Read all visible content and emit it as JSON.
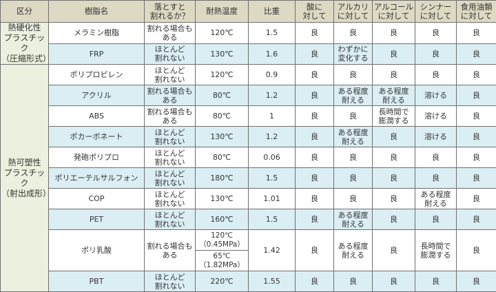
{
  "headers": [
    "区分",
    "樹脂名",
    "落とすと\n割れるか？",
    "耐熱温度",
    "比重",
    "酸に\n対して",
    "アルカリ\nに対して",
    "アルコール\nに対して",
    "シンナー\nに対して",
    "食用油類\nに対して"
  ],
  "categories": [
    {
      "label": "熱硬化性\nプラスチック\n（圧縮形式）",
      "rows": 2
    },
    {
      "label": "熱可塑性\nプラスチック\n（射出成形）",
      "rows": 10
    }
  ],
  "rows": [
    {
      "name": "メラミン樹脂",
      "drop": "割れる場合も\nある",
      "heat": [
        "120℃"
      ],
      "gravity": "1.5",
      "acid": "良",
      "alkali": "良",
      "alcohol": "良",
      "thinner": "良",
      "oil": "良",
      "shade": "w"
    },
    {
      "name": "FRP",
      "drop": "ほとんど\n割れない",
      "heat": [
        "130℃"
      ],
      "gravity": "1.6",
      "acid": "良",
      "alkali": "わずかに\n変化する",
      "alcohol": "良",
      "thinner": "良",
      "oil": "良",
      "shade": "b"
    },
    {
      "name": "ポリプロピレン",
      "drop": "ほとんど\n割れない",
      "heat": [
        "120℃"
      ],
      "gravity": "0.9",
      "acid": "良",
      "alkali": "良",
      "alcohol": "良",
      "thinner": "良",
      "oil": "良",
      "shade": "w"
    },
    {
      "name": "アクリル",
      "drop": "割れる場合も\nある",
      "heat": [
        "80℃"
      ],
      "gravity": "1.2",
      "acid": "良",
      "alkali": "ある程度\n耐える",
      "alcohol": "ある程度\n耐える",
      "thinner": "溶ける",
      "oil": "良",
      "shade": "b"
    },
    {
      "name": "ABS",
      "drop": "割れる場合も\nある",
      "heat": [
        "80℃"
      ],
      "gravity": "1",
      "acid": "良",
      "alkali": "良",
      "alcohol": "長時間で\n膨潤する",
      "thinner": "溶ける",
      "oil": "良",
      "shade": "w"
    },
    {
      "name": "ポカーボネート",
      "drop": "ほとんど\n割れない",
      "heat": [
        "130℃"
      ],
      "gravity": "1.2",
      "acid": "良",
      "alkali": "ある程度\n耐える",
      "alcohol": "良",
      "thinner": "溶ける",
      "oil": "良",
      "shade": "b"
    },
    {
      "name": "発砲ポリプロ",
      "drop": "ほとんど\n割れない",
      "heat": [
        "80℃"
      ],
      "gravity": "0.06",
      "acid": "良",
      "alkali": "良",
      "alcohol": "良",
      "thinner": "良",
      "oil": "良",
      "shade": "w"
    },
    {
      "name": "ポリエーテルサルフォン",
      "drop": "ほとんど\n割れない",
      "heat": [
        "180℃"
      ],
      "gravity": "1.5",
      "acid": "良",
      "alkali": "良",
      "alcohol": "良",
      "thinner": "良",
      "oil": "良",
      "shade": "b"
    },
    {
      "name": "COP",
      "drop": "ほとんど\n割れない",
      "heat": [
        "130℃"
      ],
      "gravity": "1.01",
      "acid": "良",
      "alkali": "良",
      "alcohol": "良",
      "thinner": "ある程度\n耐える",
      "oil": "良",
      "shade": "w"
    },
    {
      "name": "PET",
      "drop": "ほとんど\n割れない",
      "heat": [
        "160℃"
      ],
      "gravity": "1.5",
      "acid": "良",
      "alkali": "ある程度\n耐える",
      "alcohol": "良",
      "thinner": "良",
      "oil": "良",
      "shade": "b"
    },
    {
      "name": "ポリ乳酸",
      "drop": "割れる場合も\nある",
      "heat": [
        "120℃\n（0.45MPa）",
        "65℃\n（1.82MPa）"
      ],
      "gravity": "1.42",
      "acid": "良",
      "alkali": "ある程度\n耐える",
      "alcohol": "良",
      "thinner": "長時間で\n膨潤する",
      "oil": "良",
      "shade": "w"
    },
    {
      "name": "PBT",
      "drop": "ほとんど\n割れない",
      "heat": [
        "220℃"
      ],
      "gravity": "1.55",
      "acid": "良",
      "alkali": "良",
      "alcohol": "良",
      "thinner": "良",
      "oil": "良",
      "shade": "b"
    }
  ]
}
